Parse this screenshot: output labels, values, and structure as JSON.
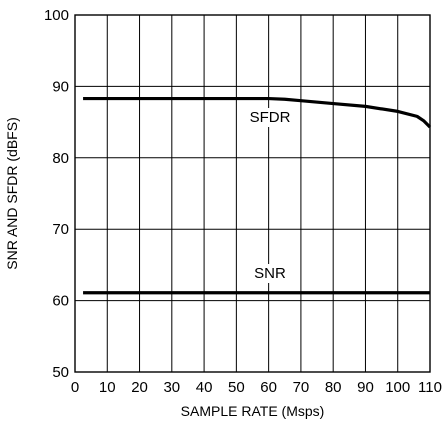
{
  "chart_data": {
    "type": "line",
    "title": "",
    "xlabel": "SAMPLE RATE (Msps)",
    "ylabel": "SNR AND SFDR (dBFS)",
    "xlim": [
      0,
      110
    ],
    "ylim": [
      50,
      100
    ],
    "xticks": [
      0,
      10,
      20,
      30,
      40,
      50,
      60,
      70,
      80,
      90,
      100,
      110
    ],
    "yticks": [
      50,
      60,
      70,
      80,
      90,
      100
    ],
    "grid": true,
    "series": [
      {
        "name": "SFDR",
        "x": [
          2.5,
          10,
          20,
          30,
          40,
          50,
          60,
          65,
          70,
          80,
          90,
          100,
          106,
          108,
          110
        ],
        "y": [
          88.3,
          88.3,
          88.3,
          88.3,
          88.3,
          88.3,
          88.3,
          88.2,
          88.0,
          87.6,
          87.2,
          86.5,
          85.8,
          85.2,
          84.3
        ]
      },
      {
        "name": "SNR",
        "x": [
          2.5,
          20,
          40,
          60,
          80,
          100,
          110
        ],
        "y": [
          61.1,
          61.1,
          61.1,
          61.1,
          61.1,
          61.1,
          61.1
        ]
      }
    ]
  }
}
